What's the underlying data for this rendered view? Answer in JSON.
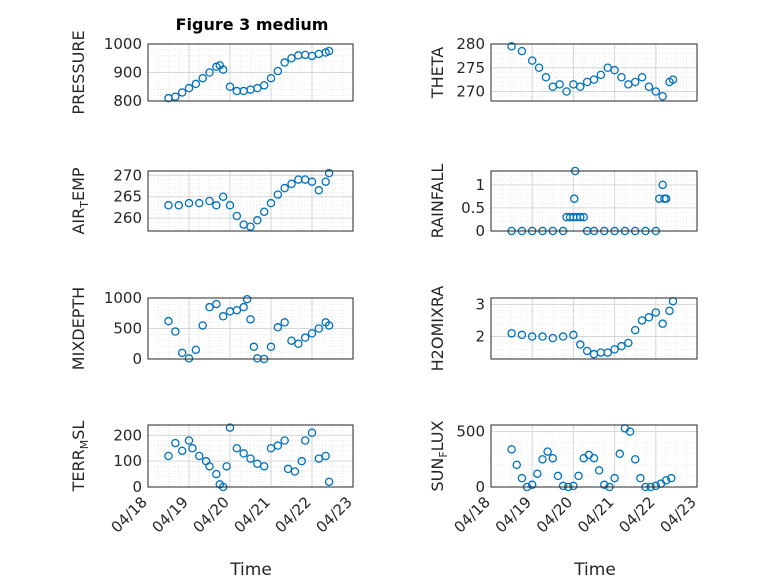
{
  "title": "Figure 3 medium",
  "xlabel": "Time",
  "x_ticks": [
    "04/18",
    "04/19",
    "04/20",
    "04/21",
    "04/22",
    "04/23"
  ],
  "marker_color": "#0072BD",
  "chart_data": [
    {
      "type": "scatter",
      "ylabel": "PRESSURE",
      "ylim": [
        800,
        1000
      ],
      "yticks": [
        800,
        900,
        1000
      ],
      "xlim": [
        "04/18",
        "04/23"
      ],
      "grid": true,
      "x": [
        "04/18 12:00",
        "04/18 16:00",
        "04/18 20:00",
        "04/19 00:00",
        "04/19 04:00",
        "04/19 08:00",
        "04/19 12:00",
        "04/19 16:00",
        "04/19 18:00",
        "04/19 20:00",
        "04/20 00:00",
        "04/20 04:00",
        "04/20 08:00",
        "04/20 12:00",
        "04/20 16:00",
        "04/20 20:00",
        "04/21 00:00",
        "04/21 04:00",
        "04/21 08:00",
        "04/21 12:00",
        "04/21 16:00",
        "04/21 20:00",
        "04/22 00:00",
        "04/22 04:00",
        "04/22 08:00",
        "04/22 10:00"
      ],
      "y": [
        810,
        815,
        830,
        845,
        860,
        880,
        900,
        920,
        925,
        910,
        850,
        835,
        835,
        840,
        845,
        855,
        880,
        905,
        935,
        950,
        960,
        962,
        958,
        965,
        970,
        975
      ]
    },
    {
      "type": "scatter",
      "ylabel": "THETA",
      "ylim": [
        268,
        280
      ],
      "yticks": [
        270,
        275,
        280
      ],
      "xlim": [
        "04/18",
        "04/23"
      ],
      "grid": true,
      "x": [
        "04/18 12:00",
        "04/18 18:00",
        "04/19 00:00",
        "04/19 04:00",
        "04/19 08:00",
        "04/19 12:00",
        "04/19 16:00",
        "04/19 20:00",
        "04/20 00:00",
        "04/20 04:00",
        "04/20 08:00",
        "04/20 12:00",
        "04/20 16:00",
        "04/20 20:00",
        "04/21 00:00",
        "04/21 04:00",
        "04/21 08:00",
        "04/21 12:00",
        "04/21 16:00",
        "04/21 20:00",
        "04/22 00:00",
        "04/22 04:00",
        "04/22 08:00",
        "04/22 10:00"
      ],
      "y": [
        279.5,
        278.5,
        276.5,
        275,
        273,
        271,
        271.5,
        270,
        271.5,
        271,
        272,
        272.5,
        273.5,
        275,
        274.5,
        273,
        271.5,
        272,
        273,
        271,
        270,
        269,
        272,
        272.5
      ]
    },
    {
      "type": "scatter",
      "ylabel": "AIR_TEMP",
      "ylim": [
        257,
        271
      ],
      "yticks": [
        260,
        265,
        270
      ],
      "xlim": [
        "04/18",
        "04/23"
      ],
      "grid": true,
      "x": [
        "04/18 12:00",
        "04/18 18:00",
        "04/19 00:00",
        "04/19 06:00",
        "04/19 12:00",
        "04/19 16:00",
        "04/19 20:00",
        "04/20 00:00",
        "04/20 04:00",
        "04/20 08:00",
        "04/20 12:00",
        "04/20 16:00",
        "04/20 20:00",
        "04/21 00:00",
        "04/21 04:00",
        "04/21 08:00",
        "04/21 12:00",
        "04/21 16:00",
        "04/21 20:00",
        "04/22 00:00",
        "04/22 04:00",
        "04/22 08:00",
        "04/22 10:00"
      ],
      "y": [
        263,
        263,
        263.5,
        263.5,
        264,
        263,
        265,
        263,
        260.5,
        258.5,
        258,
        259.5,
        261.5,
        263.5,
        265.5,
        267,
        268,
        269,
        269,
        268.5,
        266.5,
        268.5,
        270.5
      ]
    },
    {
      "type": "scatter",
      "ylabel": "RAINFALL",
      "ylim": [
        0,
        1.3
      ],
      "yticks": [
        0,
        0.5,
        1
      ],
      "xlim": [
        "04/18",
        "04/23"
      ],
      "grid": true,
      "x": [
        "04/18 12:00",
        "04/18 18:00",
        "04/19 00:00",
        "04/19 06:00",
        "04/19 12:00",
        "04/19 18:00",
        "04/19 20:00",
        "04/19 22:00",
        "04/20 00:00",
        "04/20 00:30",
        "04/20 01:00",
        "04/20 02:00",
        "04/20 04:00",
        "04/20 06:00",
        "04/20 08:00",
        "04/20 12:00",
        "04/20 18:00",
        "04/21 00:00",
        "04/21 06:00",
        "04/21 12:00",
        "04/21 18:00",
        "04/22 00:00",
        "04/22 02:00",
        "04/22 04:00",
        "04/22 05:00",
        "04/22 06:00"
      ],
      "y": [
        0,
        0,
        0,
        0,
        0,
        0,
        0.3,
        0.3,
        0.3,
        0.7,
        1.3,
        0.3,
        0.3,
        0.3,
        0,
        0,
        0,
        0,
        0,
        0,
        0,
        0,
        0.7,
        1.0,
        0.7,
        0.7
      ]
    },
    {
      "type": "scatter",
      "ylabel": "MIXDEPTH",
      "ylim": [
        0,
        1000
      ],
      "yticks": [
        0,
        500,
        1000
      ],
      "xlim": [
        "04/18",
        "04/23"
      ],
      "grid": true,
      "x": [
        "04/18 12:00",
        "04/18 16:00",
        "04/18 20:00",
        "04/19 00:00",
        "04/19 04:00",
        "04/19 08:00",
        "04/19 12:00",
        "04/19 16:00",
        "04/19 20:00",
        "04/20 00:00",
        "04/20 04:00",
        "04/20 08:00",
        "04/20 10:00",
        "04/20 12:00",
        "04/20 14:00",
        "04/20 16:00",
        "04/20 20:00",
        "04/21 00:00",
        "04/21 04:00",
        "04/21 08:00",
        "04/21 12:00",
        "04/21 16:00",
        "04/21 20:00",
        "04/22 00:00",
        "04/22 04:00",
        "04/22 08:00",
        "04/22 10:00"
      ],
      "y": [
        620,
        450,
        100,
        10,
        150,
        550,
        850,
        900,
        700,
        780,
        800,
        850,
        980,
        650,
        200,
        10,
        0,
        200,
        520,
        600,
        300,
        250,
        350,
        420,
        500,
        600,
        550
      ]
    },
    {
      "type": "scatter",
      "ylabel": "H2OMIXRA",
      "ylim": [
        1.3,
        3.2
      ],
      "yticks": [
        2,
        3
      ],
      "xlim": [
        "04/18",
        "04/23"
      ],
      "grid": true,
      "x": [
        "04/18 12:00",
        "04/18 18:00",
        "04/19 00:00",
        "04/19 06:00",
        "04/19 12:00",
        "04/19 18:00",
        "04/20 00:00",
        "04/20 04:00",
        "04/20 08:00",
        "04/20 12:00",
        "04/20 16:00",
        "04/20 20:00",
        "04/21 00:00",
        "04/21 04:00",
        "04/21 08:00",
        "04/21 12:00",
        "04/21 16:00",
        "04/21 20:00",
        "04/22 00:00",
        "04/22 04:00",
        "04/22 08:00",
        "04/22 10:00"
      ],
      "y": [
        2.1,
        2.05,
        2.0,
        2.0,
        1.95,
        2.0,
        2.05,
        1.75,
        1.55,
        1.45,
        1.5,
        1.5,
        1.6,
        1.7,
        1.8,
        2.2,
        2.5,
        2.6,
        2.75,
        2.4,
        2.8,
        3.1
      ]
    },
    {
      "type": "scatter",
      "ylabel": "TERR_MSL",
      "ylim": [
        0,
        240
      ],
      "yticks": [
        0,
        100,
        200
      ],
      "xlim": [
        "04/18",
        "04/23"
      ],
      "grid": true,
      "x": [
        "04/18 12:00",
        "04/18 16:00",
        "04/18 20:00",
        "04/19 00:00",
        "04/19 02:00",
        "04/19 06:00",
        "04/19 10:00",
        "04/19 12:00",
        "04/19 16:00",
        "04/19 18:00",
        "04/19 20:00",
        "04/19 22:00",
        "04/20 00:00",
        "04/20 04:00",
        "04/20 08:00",
        "04/20 12:00",
        "04/20 16:00",
        "04/20 20:00",
        "04/21 00:00",
        "04/21 04:00",
        "04/21 08:00",
        "04/21 10:00",
        "04/21 14:00",
        "04/21 18:00",
        "04/21 20:00",
        "04/22 00:00",
        "04/22 04:00",
        "04/22 08:00",
        "04/22 10:00"
      ],
      "y": [
        120,
        170,
        140,
        180,
        150,
        120,
        100,
        80,
        50,
        10,
        0,
        80,
        230,
        150,
        130,
        110,
        90,
        80,
        150,
        160,
        180,
        70,
        60,
        100,
        180,
        210,
        110,
        120,
        20
      ]
    },
    {
      "type": "scatter",
      "ylabel": "SUN_FLUX",
      "ylim": [
        0,
        560
      ],
      "yticks": [
        0,
        500
      ],
      "xlim": [
        "04/18",
        "04/23"
      ],
      "grid": true,
      "x": [
        "04/18 12:00",
        "04/18 15:00",
        "04/18 18:00",
        "04/18 21:00",
        "04/19 00:00",
        "04/19 03:00",
        "04/19 06:00",
        "04/19 09:00",
        "04/19 12:00",
        "04/19 15:00",
        "04/19 18:00",
        "04/19 21:00",
        "04/20 00:00",
        "04/20 03:00",
        "04/20 06:00",
        "04/20 09:00",
        "04/20 12:00",
        "04/20 15:00",
        "04/20 18:00",
        "04/20 21:00",
        "04/21 00:00",
        "04/21 03:00",
        "04/21 06:00",
        "04/21 09:00",
        "04/21 12:00",
        "04/21 15:00",
        "04/21 18:00",
        "04/21 21:00",
        "04/22 00:00",
        "04/22 03:00",
        "04/22 06:00",
        "04/22 09:00"
      ],
      "y": [
        340,
        200,
        80,
        0,
        20,
        120,
        250,
        320,
        260,
        100,
        10,
        0,
        10,
        100,
        260,
        290,
        260,
        150,
        20,
        0,
        80,
        300,
        530,
        500,
        250,
        80,
        0,
        0,
        10,
        30,
        60,
        80
      ]
    }
  ]
}
